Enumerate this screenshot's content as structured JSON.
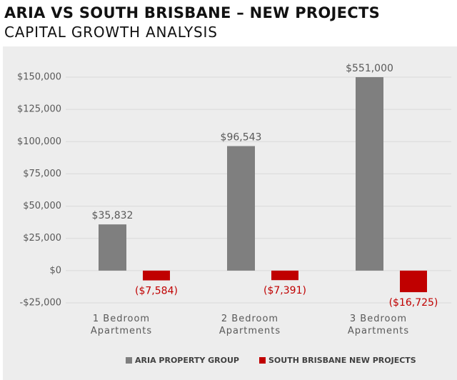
{
  "chart_data": {
    "type": "bar",
    "title": "ARIA VS SOUTH BRISBANE – NEW PROJECTS",
    "subtitle": "CAPITAL GROWTH ANALYSIS",
    "categories": [
      "1 Bedroom Apartments",
      "2 Bedroom Apartments",
      "3 Bedroom Apartments"
    ],
    "series": [
      {
        "name": "ARIA PROPERTY GROUP",
        "color": "#7f7f7f",
        "values": [
          35832,
          96543,
          551000
        ],
        "value_labels": [
          "$35,832",
          "$96,543",
          "$551,000"
        ]
      },
      {
        "name": "SOUTH BRISBANE NEW PROJECTS",
        "color": "#c00000",
        "values": [
          -7584,
          -7391,
          -16725
        ],
        "value_labels": [
          "($7,584)",
          "($7,391)",
          "($16,725)"
        ]
      }
    ],
    "ylim": [
      -25000,
      150000
    ],
    "yticks": [
      {
        "value": -25000,
        "label": "-$25,000"
      },
      {
        "value": 0,
        "label": "$0"
      },
      {
        "value": 25000,
        "label": "$25,000"
      },
      {
        "value": 50000,
        "label": "$50,000"
      },
      {
        "value": 75000,
        "label": "$75,000"
      },
      {
        "value": 100000,
        "label": "$100,000"
      },
      {
        "value": 125000,
        "label": "$125,000"
      },
      {
        "value": 150000,
        "label": "$150,000"
      }
    ],
    "grid": true,
    "legend": "bottom"
  }
}
